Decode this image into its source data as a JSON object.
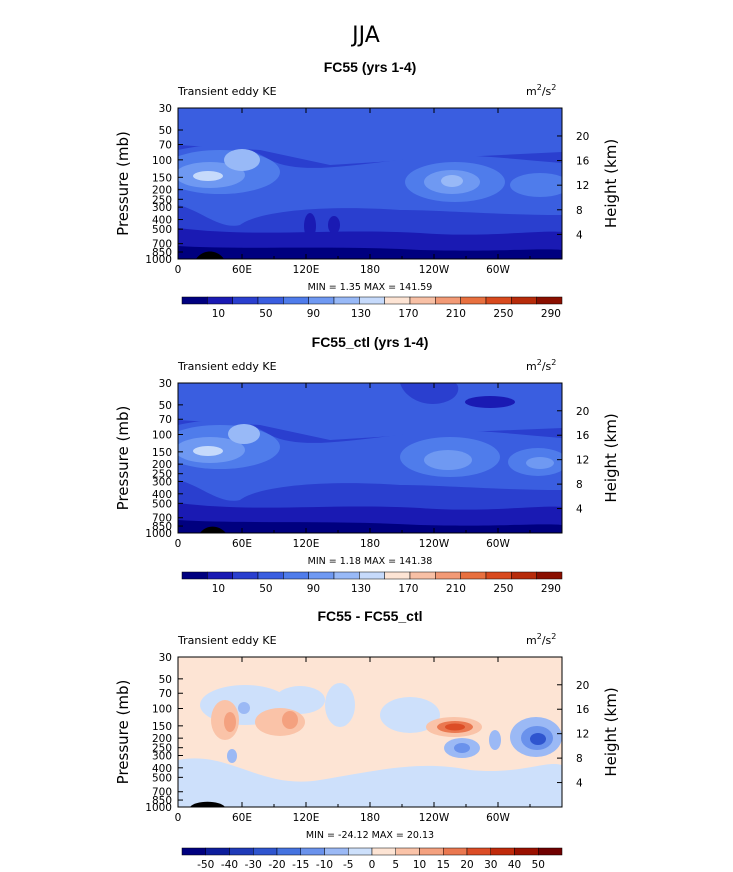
{
  "figure": {
    "title": "JJA"
  },
  "chart_data": [
    {
      "type": "heatmap",
      "title": "FC55 (yrs 1-4)",
      "left_label": "Transient eddy KE",
      "units": "m²/s²",
      "units_base": "m",
      "units_exp1": "2",
      "units_mid": "/s",
      "units_exp2": "2",
      "ylabel": "Pressure (mb)",
      "ylabel_right": "Height (km)",
      "x_ticks": [
        "0",
        "60E",
        "120E",
        "180",
        "120W",
        "60W"
      ],
      "x_tick_lon": [
        0,
        60,
        120,
        180,
        240,
        300
      ],
      "y_ticks": [
        "30",
        "50",
        "70",
        "100",
        "150",
        "200",
        "250",
        "300",
        "400",
        "500",
        "700",
        "850",
        "1000"
      ],
      "y_tick_p": [
        30,
        50,
        70,
        100,
        150,
        200,
        250,
        300,
        400,
        500,
        700,
        850,
        1000
      ],
      "height_ticks": [
        "4",
        "8",
        "12",
        "16",
        "20"
      ],
      "height_km": [
        4,
        8,
        12,
        16,
        20
      ],
      "stats": "MIN =     1.35  MAX = 141.59",
      "min": 1.35,
      "max": 141.59,
      "colorbar_labels": [
        "10",
        "50",
        "90",
        "130",
        "170",
        "210",
        "250",
        "290"
      ],
      "colorbar_colors": [
        "#00007f",
        "#1a1ab3",
        "#2a3fcf",
        "#3a5ee0",
        "#4f7ceb",
        "#6f99f2",
        "#98b9f7",
        "#c6dafb",
        "#fde4d4",
        "#f8c0a5",
        "#f29a76",
        "#e8703f",
        "#d84a1e",
        "#b72b0a",
        "#8a0f00"
      ]
    },
    {
      "type": "heatmap",
      "title": "FC55_ctl (yrs 1-4)",
      "left_label": "Transient eddy KE",
      "units": "m²/s²",
      "units_base": "m",
      "units_exp1": "2",
      "units_mid": "/s",
      "units_exp2": "2",
      "ylabel": "Pressure (mb)",
      "ylabel_right": "Height (km)",
      "x_ticks": [
        "0",
        "60E",
        "120E",
        "180",
        "120W",
        "60W"
      ],
      "x_tick_lon": [
        0,
        60,
        120,
        180,
        240,
        300
      ],
      "y_ticks": [
        "30",
        "50",
        "70",
        "100",
        "150",
        "200",
        "250",
        "300",
        "400",
        "500",
        "700",
        "850",
        "1000"
      ],
      "y_tick_p": [
        30,
        50,
        70,
        100,
        150,
        200,
        250,
        300,
        400,
        500,
        700,
        850,
        1000
      ],
      "height_ticks": [
        "4",
        "8",
        "12",
        "16",
        "20"
      ],
      "height_km": [
        4,
        8,
        12,
        16,
        20
      ],
      "stats": "MIN =     1.18  MAX = 141.38",
      "min": 1.18,
      "max": 141.38,
      "colorbar_labels": [
        "10",
        "50",
        "90",
        "130",
        "170",
        "210",
        "250",
        "290"
      ],
      "colorbar_colors": [
        "#00007f",
        "#1a1ab3",
        "#2a3fcf",
        "#3a5ee0",
        "#4f7ceb",
        "#6f99f2",
        "#98b9f7",
        "#c6dafb",
        "#fde4d4",
        "#f8c0a5",
        "#f29a76",
        "#e8703f",
        "#d84a1e",
        "#b72b0a",
        "#8a0f00"
      ]
    },
    {
      "type": "heatmap",
      "title": "FC55 - FC55_ctl",
      "left_label": "Transient eddy KE",
      "units": "m²/s²",
      "units_base": "m",
      "units_exp1": "2",
      "units_mid": "/s",
      "units_exp2": "2",
      "ylabel": "Pressure (mb)",
      "ylabel_right": "Height (km)",
      "x_ticks": [
        "0",
        "60E",
        "120E",
        "180",
        "120W",
        "60W"
      ],
      "x_tick_lon": [
        0,
        60,
        120,
        180,
        240,
        300
      ],
      "y_ticks": [
        "30",
        "50",
        "70",
        "100",
        "150",
        "200",
        "250",
        "300",
        "400",
        "500",
        "700",
        "850",
        "1000"
      ],
      "y_tick_p": [
        30,
        50,
        70,
        100,
        150,
        200,
        250,
        300,
        400,
        500,
        700,
        850,
        1000
      ],
      "height_ticks": [
        "4",
        "8",
        "12",
        "16",
        "20"
      ],
      "height_km": [
        4,
        8,
        12,
        16,
        20
      ],
      "stats": "MIN = -24.12  MAX =  20.13",
      "min": -24.12,
      "max": 20.13,
      "colorbar_labels": [
        "-50",
        "-40",
        "-30",
        "-20",
        "-15",
        "-10",
        "-5",
        "0",
        "5",
        "10",
        "15",
        "20",
        "30",
        "40",
        "50"
      ],
      "colorbar_colors": [
        "#00007f",
        "#0d1d9c",
        "#1f3ab8",
        "#2f55cf",
        "#4573e0",
        "#6a92ec",
        "#9bb9f5",
        "#cde0fb",
        "#fde4d4",
        "#fac3a8",
        "#f4a17f",
        "#ea7850",
        "#dc4d26",
        "#c02a0b",
        "#9a1000",
        "#700000"
      ]
    }
  ]
}
